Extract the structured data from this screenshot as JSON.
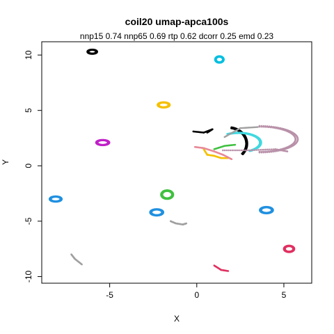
{
  "chart_data": {
    "type": "scatter",
    "title": "coil20 umap-apca100s",
    "subtitle": "nnp15 0.74 nnp65 0.69 rtp 0.62 dcorr 0.25 emd 0.23",
    "xlabel": "X",
    "ylabel": "Y",
    "xlim": [
      -8.9,
      6.6
    ],
    "ylim": [
      -10.6,
      11.2
    ],
    "xticks": [
      -5,
      0,
      5
    ],
    "xtick_labels": [
      "-5",
      "0",
      "5"
    ],
    "yticks": [
      -10,
      -5,
      0,
      5,
      10
    ],
    "ytick_labels": [
      "-10",
      "-5",
      "0",
      "5",
      "10"
    ],
    "grid": false,
    "clusters": [
      {
        "shape": "ring",
        "color": "#000000",
        "cx": -6.0,
        "cy": 10.3,
        "rx": 0.28,
        "ry": 0.2
      },
      {
        "shape": "ring",
        "color": "#00BFE0",
        "cx": 1.3,
        "cy": 9.6,
        "rx": 0.25,
        "ry": 0.3
      },
      {
        "shape": "ring",
        "color": "#F5C000",
        "cx": -1.9,
        "cy": 5.5,
        "rx": 0.35,
        "ry": 0.25
      },
      {
        "shape": "ring",
        "color": "#C020C8",
        "cx": -5.4,
        "cy": 2.1,
        "rx": 0.38,
        "ry": 0.25
      },
      {
        "shape": "ring",
        "color": "#2090E0",
        "cx": -8.1,
        "cy": -3.0,
        "rx": 0.35,
        "ry": 0.25
      },
      {
        "shape": "ring",
        "color": "#40C040",
        "cx": -1.7,
        "cy": -2.6,
        "rx": 0.35,
        "ry": 0.4
      },
      {
        "shape": "ring",
        "color": "#2090E0",
        "cx": -2.3,
        "cy": -4.2,
        "rx": 0.38,
        "ry": 0.3
      },
      {
        "shape": "ring",
        "color": "#2090E0",
        "cx": 4.0,
        "cy": -4.0,
        "rx": 0.38,
        "ry": 0.3
      },
      {
        "shape": "ring",
        "color": "#E03060",
        "cx": 5.3,
        "cy": -7.5,
        "rx": 0.3,
        "ry": 0.3
      },
      {
        "shape": "line",
        "color": "#A0A0A0",
        "points": [
          [
            -1.5,
            -5.0
          ],
          [
            -1.2,
            -5.2
          ],
          [
            -0.8,
            -5.3
          ],
          [
            -0.6,
            -5.2
          ]
        ]
      },
      {
        "shape": "line",
        "color": "#A0A0A0",
        "points": [
          [
            -7.2,
            -8.0
          ],
          [
            -7.0,
            -8.4
          ],
          [
            -6.6,
            -8.9
          ]
        ]
      },
      {
        "shape": "line",
        "color": "#E03060",
        "points": [
          [
            1.0,
            -9.0
          ],
          [
            1.4,
            -9.4
          ],
          [
            1.8,
            -9.5
          ]
        ]
      },
      {
        "shape": "line",
        "color": "#000000",
        "points": [
          [
            -0.2,
            3.1
          ],
          [
            0.4,
            3.0
          ],
          [
            0.9,
            3.3
          ],
          [
            0.6,
            3.0
          ]
        ]
      },
      {
        "shape": "arc",
        "color": "#000000",
        "cx": 1.8,
        "cy": 2.0,
        "rx": 1.1,
        "ry": 1.5,
        "a0": -40,
        "a1": 80
      },
      {
        "shape": "arc",
        "color": "#40D8E0",
        "cx": 2.4,
        "cy": 2.1,
        "rx": 1.3,
        "ry": 0.9,
        "a0": -60,
        "a1": 120
      },
      {
        "shape": "arc",
        "color": "#B890A8",
        "cx": 3.6,
        "cy": 2.4,
        "rx": 2.2,
        "ry": 1.2,
        "a0": -90,
        "a1": 90
      },
      {
        "shape": "line",
        "color": "#B890A8",
        "points": [
          [
            1.5,
            1.4
          ],
          [
            3.0,
            1.4
          ],
          [
            4.5,
            1.5
          ],
          [
            5.2,
            1.3
          ]
        ]
      },
      {
        "shape": "line",
        "color": "#F5C000",
        "points": [
          [
            0.4,
            1.5
          ],
          [
            0.6,
            1.0
          ],
          [
            1.0,
            0.9
          ],
          [
            1.4,
            0.7
          ],
          [
            1.8,
            0.7
          ]
        ]
      },
      {
        "shape": "line",
        "color": "#E88898",
        "points": [
          [
            -0.1,
            1.7
          ],
          [
            0.4,
            1.6
          ],
          [
            1.0,
            1.3
          ],
          [
            1.5,
            1.0
          ],
          [
            2.0,
            0.6
          ]
        ]
      },
      {
        "shape": "line",
        "color": "#40C040",
        "points": [
          [
            1.0,
            1.5
          ],
          [
            1.6,
            1.8
          ],
          [
            2.2,
            1.9
          ]
        ]
      },
      {
        "shape": "line",
        "color": "#A0A0A0",
        "points": [
          [
            1.6,
            2.6
          ],
          [
            2.5,
            3.4
          ],
          [
            3.5,
            3.5
          ]
        ]
      }
    ]
  }
}
